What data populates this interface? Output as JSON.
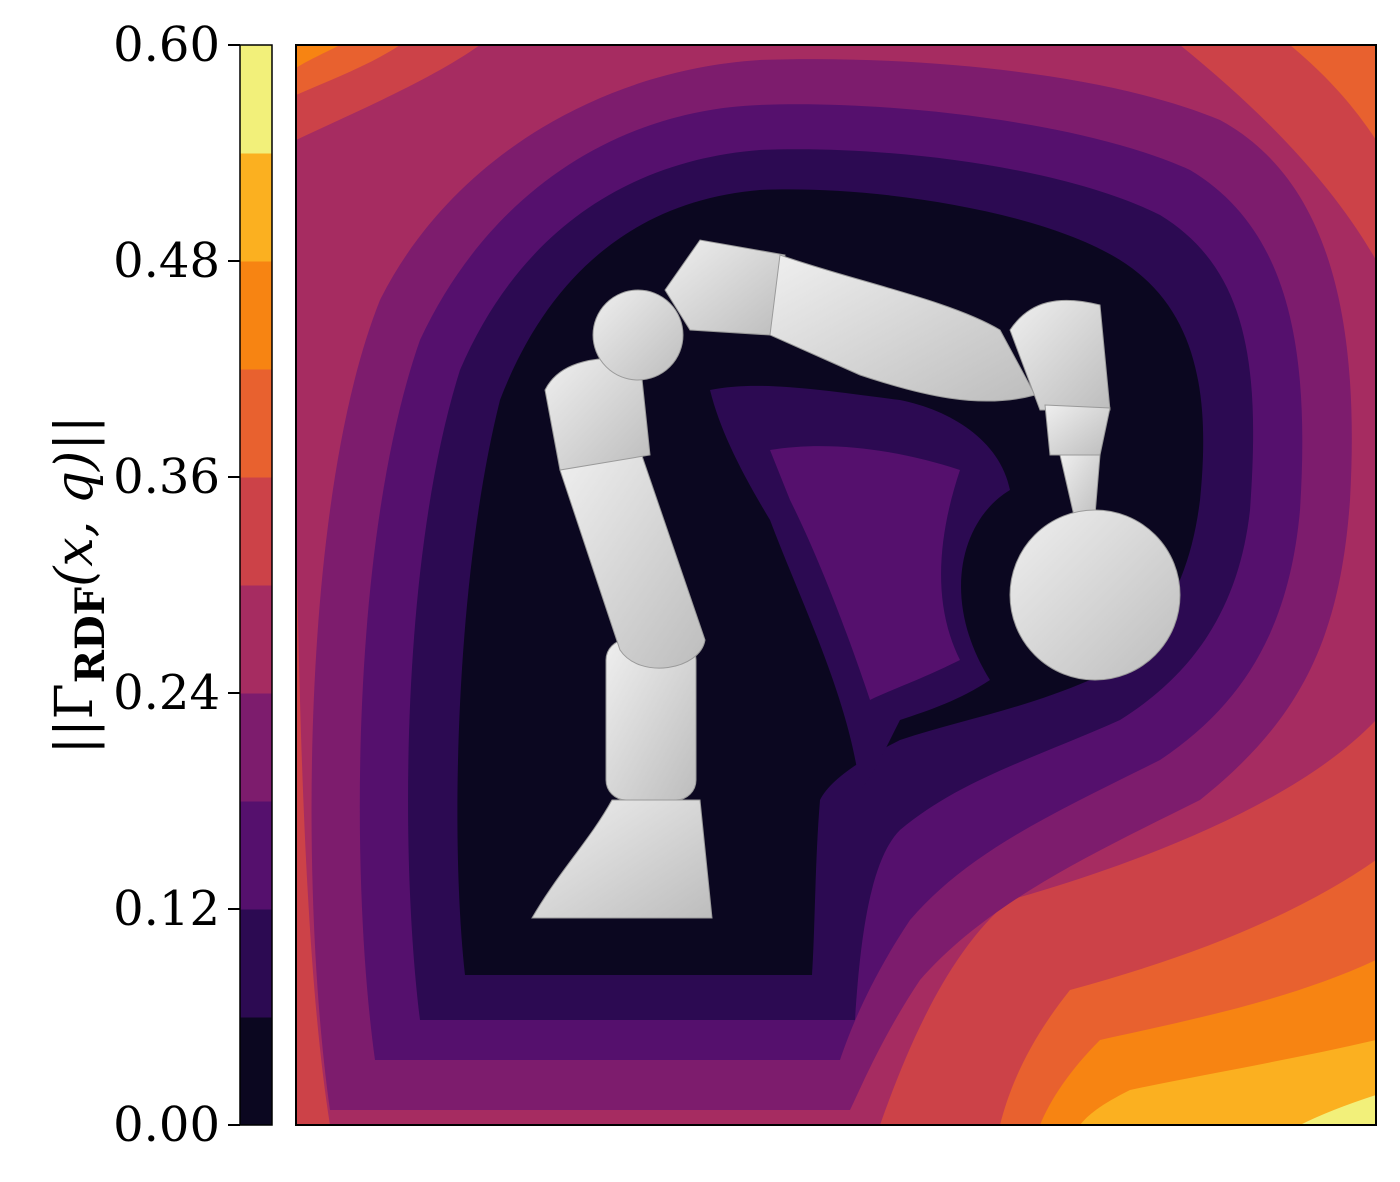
{
  "chart_data": {
    "type": "heatmap",
    "title": "",
    "xlabel": "",
    "ylabel": {
      "norm_open": "||Γ",
      "subscript": "RDF",
      "args": "(x, q)",
      "norm_close": "||"
    },
    "colorbar": {
      "min": 0.0,
      "max": 0.6,
      "ticks": [
        "0.00",
        "0.12",
        "0.24",
        "0.36",
        "0.48",
        "0.60"
      ],
      "levels": [
        0.0,
        0.06,
        0.12,
        0.18,
        0.24,
        0.3,
        0.36,
        0.42,
        0.48,
        0.54,
        0.6
      ],
      "colors": [
        "#0b0720",
        "#2c0a52",
        "#55106d",
        "#7d1c6d",
        "#a62c61",
        "#cc4248",
        "#e8612f",
        "#f78412",
        "#fbb020",
        "#f2f07a"
      ]
    },
    "field_description_only": "distance field contour bands around robot arm silhouette",
    "colormap": "inferno"
  }
}
